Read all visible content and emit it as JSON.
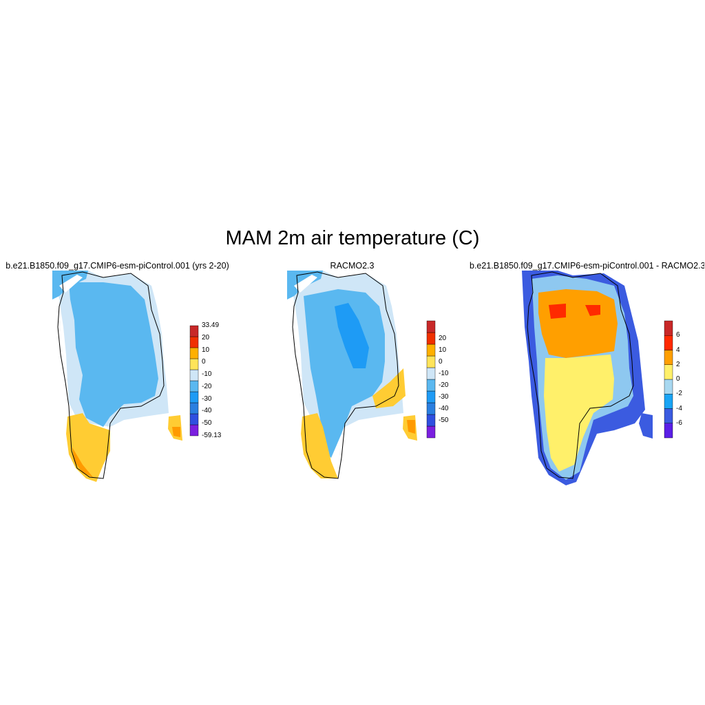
{
  "figure": {
    "title": "MAM 2m air temperature (C)"
  },
  "panels": [
    {
      "title": "b.e21.B1850.f09_g17.CMIP6-esm-piControl.001 (yrs 2-20)",
      "colorbar": {
        "colors": [
          "#7b1fe0",
          "#2f4fe0",
          "#2a7fe0",
          "#1e9bf5",
          "#5ab8f0",
          "#cfe6f7",
          "#ffe45a",
          "#ffb000",
          "#f03000",
          "#c82828"
        ],
        "labels": [
          "-59.13",
          "-50",
          "-40",
          "-30",
          "-20",
          "-10",
          "0",
          "10",
          "20",
          "33.49"
        ]
      }
    },
    {
      "title": "RACMO2.3",
      "colorbar": {
        "colors": [
          "#7b1fe0",
          "#2f4fe0",
          "#2a7fe0",
          "#1e9bf5",
          "#5ab8f0",
          "#cfe6f7",
          "#ffe45a",
          "#ffb000",
          "#f03000",
          "#c82828"
        ],
        "labels": [
          "-50",
          "-40",
          "-30",
          "-20",
          "-10",
          "0",
          "10",
          "20"
        ]
      }
    },
    {
      "title": "b.e21.B1850.f09_g17.CMIP6-esm-piControl.001 - RACMO2.3",
      "colorbar": {
        "colors": [
          "#5a1fe6",
          "#3b5be0",
          "#19a4f5",
          "#a8d8f0",
          "#fff06a",
          "#ff9f00",
          "#ff2a00",
          "#c82828"
        ],
        "labels": [
          "-6",
          "-4",
          "-2",
          "0",
          "2",
          "4",
          "6"
        ]
      }
    }
  ]
}
